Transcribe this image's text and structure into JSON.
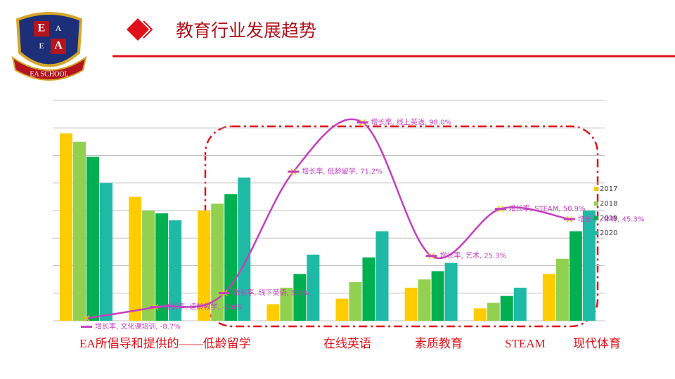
{
  "header": {
    "title": "教育行业发展趋势",
    "logo": {
      "letters": [
        "E",
        "A",
        "E",
        "A"
      ],
      "school": "EA SCHOOL"
    }
  },
  "chart_data": {
    "type": "bar",
    "categories": [
      "文化课培训",
      "适龄教学",
      "线下英语",
      "低龄留学",
      "线上英语",
      "艺术",
      "STEAM",
      "体育"
    ],
    "series": [
      {
        "name": "2017",
        "color": "#ffcc00",
        "values": [
          68,
          45,
          40,
          6,
          8,
          12,
          4.5,
          17
        ]
      },
      {
        "name": "2018",
        "color": "#92d050",
        "values": [
          65,
          40,
          42.5,
          12,
          14,
          15,
          6.5,
          22.5
        ]
      },
      {
        "name": "2019",
        "color": "#00b050",
        "values": [
          59.5,
          39,
          46,
          17,
          23,
          18,
          9,
          32.5
        ]
      },
      {
        "name": "2020",
        "color": "#1fbaa6",
        "values": [
          50,
          36.5,
          52,
          24,
          32.5,
          21,
          12,
          40
        ]
      },
      {
        "name": "增长率",
        "type": "line",
        "axis": "y2",
        "color": "#c43fc0",
        "values": [
          -8.7,
          -2.6,
          5.1,
          71.2,
          98.0,
          25.3,
          50.9,
          45.3
        ],
        "value_labels": [
          "增长率, 文化课培训, -8.7%",
          "增长率, 适龄教学, -2.6%",
          "增长率, 线下英语, 5.1%",
          "增长率, 低龄留学, 71.2%",
          "增长率, 线上英语, 98.0%",
          "增长率, 艺术, 25.3%",
          "增长率, STEAM, 50.9%",
          "增长率, 体育, 45.3%"
        ]
      }
    ],
    "ylim": [
      0,
      80
    ],
    "yticks": [
      0,
      10,
      20,
      30,
      40,
      50,
      60,
      70,
      80
    ],
    "y2lim": [
      -10,
      110
    ],
    "grid": true,
    "legend": "right",
    "annotations": [
      "EA所倡导和提供的——低龄留学",
      "在线英语",
      "素质教育",
      "STEAM",
      "现代体育"
    ]
  }
}
